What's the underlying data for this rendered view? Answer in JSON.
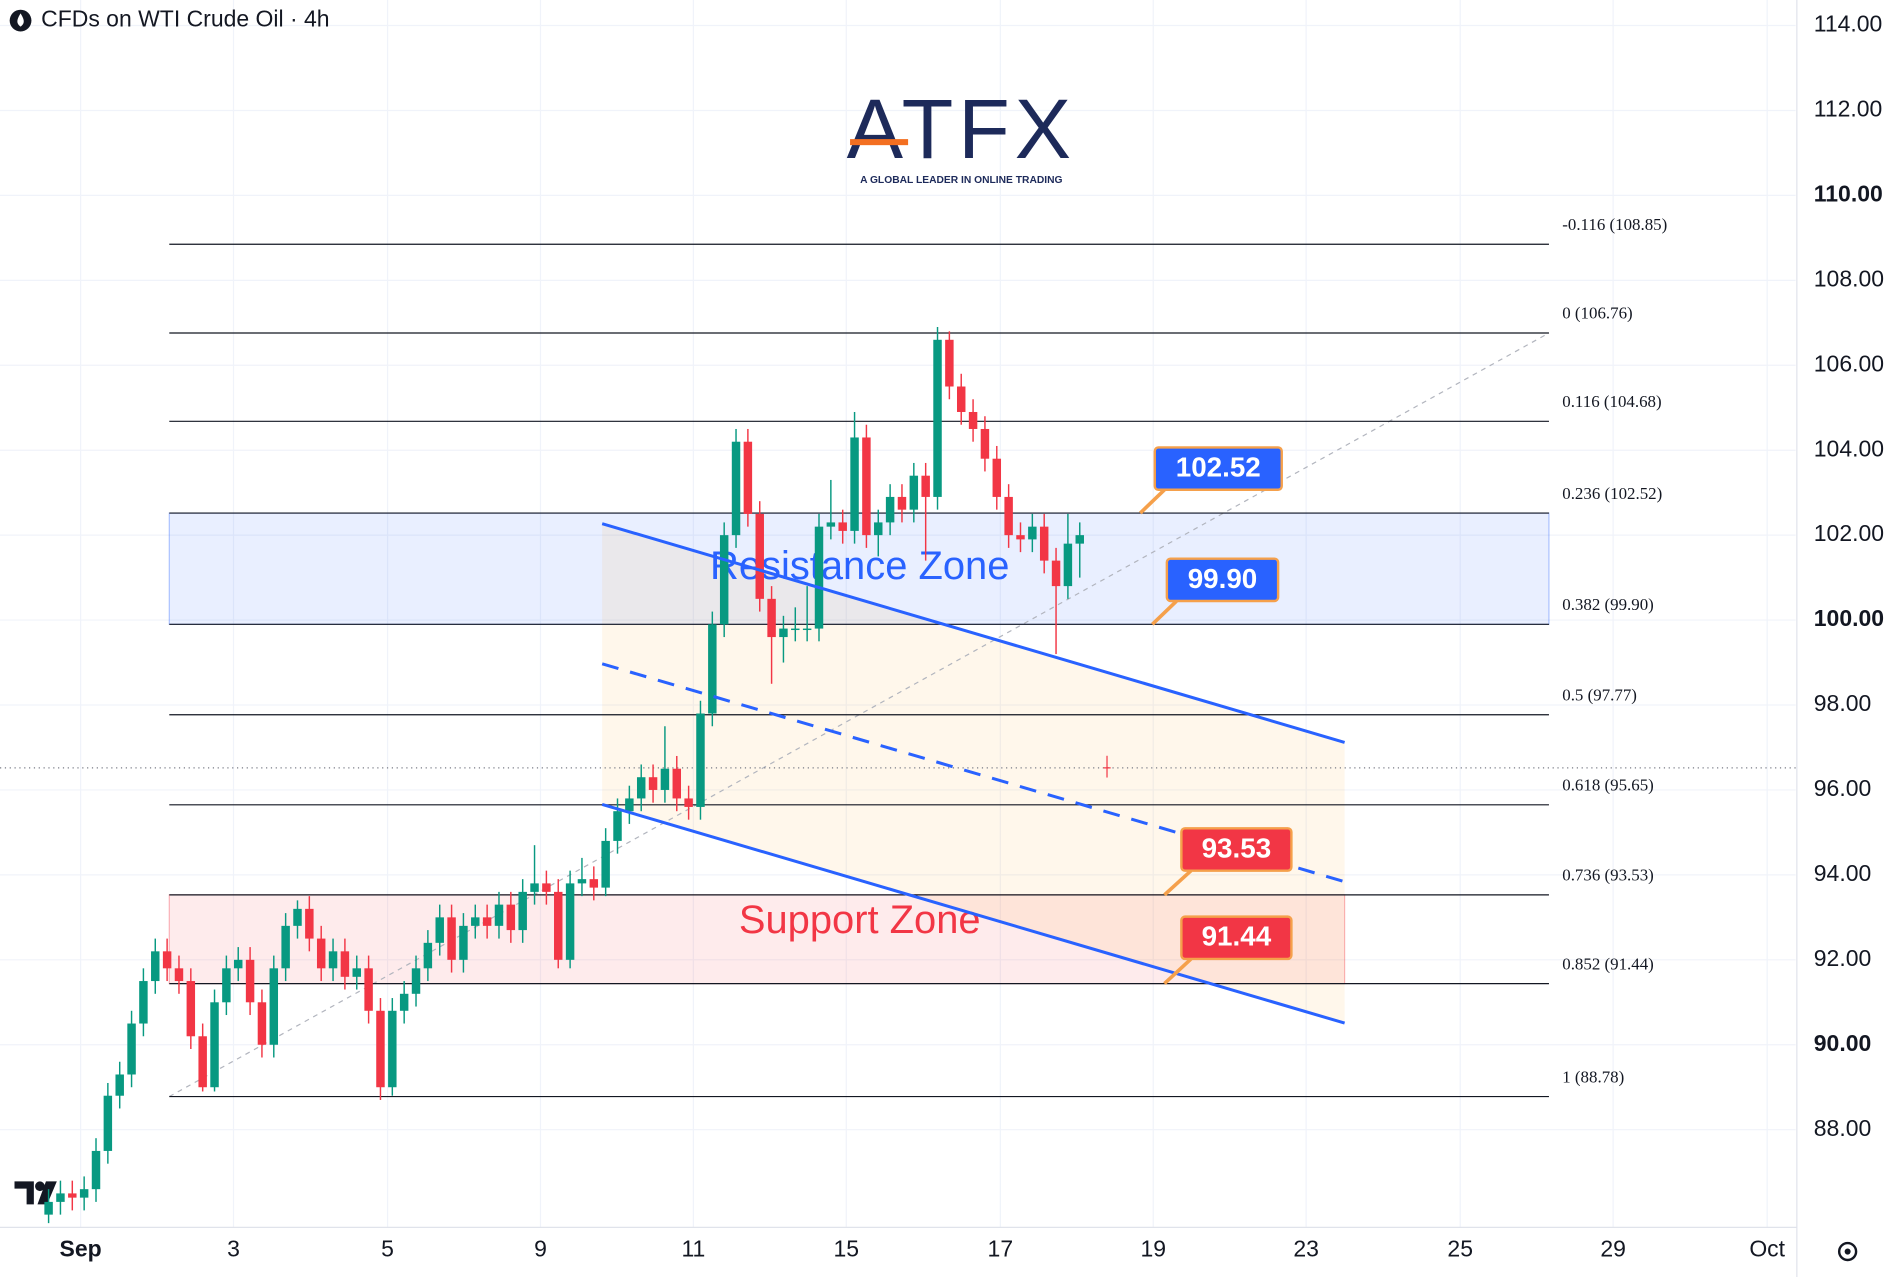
{
  "header": {
    "title": "CFDs on WTI Crude Oil · 4h"
  },
  "logo": {
    "brand": "ATFX",
    "tagline": "A GLOBAL LEADER IN ONLINE TRADING"
  },
  "chart_data": {
    "type": "candlestick",
    "ylim": [
      85.7,
      114.6
    ],
    "yticks": [
      {
        "value": 88,
        "label": "88.00"
      },
      {
        "value": 90,
        "label": "90.00"
      },
      {
        "value": 92,
        "label": "92.00"
      },
      {
        "value": 94,
        "label": "94.00"
      },
      {
        "value": 96,
        "label": "96.00"
      },
      {
        "value": 98,
        "label": "98.00"
      },
      {
        "value": 100,
        "label": "100.00"
      },
      {
        "value": 102,
        "label": "102.00"
      },
      {
        "value": 104,
        "label": "104.00"
      },
      {
        "value": 106,
        "label": "106.00"
      },
      {
        "value": 108,
        "label": "108.00"
      },
      {
        "value": 110,
        "label": "110.00"
      },
      {
        "value": 112,
        "label": "112.00"
      },
      {
        "value": 114,
        "label": "114.00"
      }
    ],
    "xlim": [
      -4.1,
      147.4
    ],
    "xticks": [
      {
        "value": 2.7,
        "label": "Sep"
      },
      {
        "value": 15.6,
        "label": "3"
      },
      {
        "value": 28.6,
        "label": "5"
      },
      {
        "value": 41.5,
        "label": "9"
      },
      {
        "value": 54.4,
        "label": "11"
      },
      {
        "value": 67.3,
        "label": "15"
      },
      {
        "value": 80.3,
        "label": "17"
      },
      {
        "value": 93.2,
        "label": "19"
      },
      {
        "value": 106.1,
        "label": "23"
      },
      {
        "value": 119.1,
        "label": "25"
      },
      {
        "value": 132.0,
        "label": "29"
      },
      {
        "value": 145.0,
        "label": "Oct"
      }
    ],
    "up_color": "#089981",
    "down_color": "#f23645",
    "ohlc": [
      [
        86.0,
        86.6,
        85.8,
        86.3
      ],
      [
        86.3,
        86.8,
        86.0,
        86.5
      ],
      [
        86.5,
        86.8,
        86.1,
        86.4
      ],
      [
        86.4,
        86.9,
        86.1,
        86.6
      ],
      [
        86.6,
        87.8,
        86.3,
        87.5
      ],
      [
        87.5,
        89.1,
        87.2,
        88.8
      ],
      [
        88.8,
        89.6,
        88.5,
        89.3
      ],
      [
        89.3,
        90.8,
        89.0,
        90.5
      ],
      [
        90.5,
        91.8,
        90.2,
        91.5
      ],
      [
        91.5,
        92.5,
        91.2,
        92.2
      ],
      [
        92.2,
        92.5,
        91.5,
        91.8
      ],
      [
        91.8,
        92.1,
        91.2,
        91.5
      ],
      [
        91.5,
        91.8,
        89.9,
        90.2
      ],
      [
        90.2,
        90.5,
        88.9,
        89.0
      ],
      [
        89.0,
        91.3,
        88.9,
        91.0
      ],
      [
        91.0,
        92.1,
        90.7,
        91.8
      ],
      [
        91.8,
        92.3,
        91.5,
        92.0
      ],
      [
        92.0,
        92.3,
        90.7,
        91.0
      ],
      [
        91.0,
        91.3,
        89.7,
        90.0
      ],
      [
        90.0,
        92.1,
        89.7,
        91.8
      ],
      [
        91.8,
        93.1,
        91.5,
        92.8
      ],
      [
        92.8,
        93.4,
        92.5,
        93.2
      ],
      [
        93.2,
        93.5,
        92.2,
        92.5
      ],
      [
        92.5,
        92.8,
        91.5,
        91.8
      ],
      [
        91.8,
        92.5,
        91.5,
        92.2
      ],
      [
        92.2,
        92.5,
        91.3,
        91.6
      ],
      [
        91.6,
        92.1,
        91.3,
        91.8
      ],
      [
        91.8,
        92.1,
        90.5,
        90.8
      ],
      [
        90.8,
        91.1,
        88.7,
        89.0
      ],
      [
        89.0,
        91.1,
        88.8,
        90.8
      ],
      [
        90.8,
        91.5,
        90.5,
        91.2
      ],
      [
        91.2,
        92.1,
        90.9,
        91.8
      ],
      [
        91.8,
        92.7,
        91.5,
        92.4
      ],
      [
        92.4,
        93.3,
        92.1,
        93.0
      ],
      [
        93.0,
        93.3,
        91.7,
        92.0
      ],
      [
        92.0,
        93.1,
        91.7,
        92.8
      ],
      [
        92.8,
        93.3,
        92.5,
        93.0
      ],
      [
        93.0,
        93.3,
        92.5,
        92.8
      ],
      [
        92.8,
        93.6,
        92.5,
        93.3
      ],
      [
        93.3,
        93.6,
        92.4,
        92.7
      ],
      [
        92.7,
        93.9,
        92.4,
        93.6
      ],
      [
        93.6,
        94.7,
        93.3,
        93.8
      ],
      [
        93.8,
        94.1,
        93.3,
        93.6
      ],
      [
        93.6,
        93.9,
        91.8,
        92.0
      ],
      [
        92.0,
        94.1,
        91.8,
        93.8
      ],
      [
        93.8,
        94.4,
        93.5,
        93.9
      ],
      [
        93.9,
        94.2,
        93.4,
        93.7
      ],
      [
        93.7,
        95.1,
        93.5,
        94.8
      ],
      [
        94.8,
        95.8,
        94.5,
        95.5
      ],
      [
        95.5,
        96.1,
        95.2,
        95.8
      ],
      [
        95.8,
        96.6,
        95.5,
        96.3
      ],
      [
        96.3,
        96.6,
        95.7,
        96.0
      ],
      [
        96.0,
        97.5,
        95.7,
        96.5
      ],
      [
        96.5,
        96.8,
        95.5,
        95.8
      ],
      [
        95.8,
        96.1,
        95.3,
        95.6
      ],
      [
        95.6,
        98.1,
        95.3,
        97.8
      ],
      [
        97.8,
        100.2,
        97.5,
        99.9
      ],
      [
        99.9,
        102.3,
        99.6,
        102.0
      ],
      [
        102.0,
        104.5,
        101.7,
        104.2
      ],
      [
        104.2,
        104.5,
        102.2,
        102.5
      ],
      [
        102.5,
        102.8,
        100.2,
        100.5
      ],
      [
        100.5,
        100.8,
        98.5,
        99.6
      ],
      [
        99.6,
        100.1,
        99.0,
        99.8
      ],
      [
        99.8,
        100.3,
        99.5,
        99.8
      ],
      [
        99.8,
        100.8,
        99.5,
        99.8
      ],
      [
        99.8,
        102.5,
        99.5,
        102.2
      ],
      [
        102.2,
        103.3,
        101.9,
        102.3
      ],
      [
        102.3,
        102.6,
        101.8,
        102.1
      ],
      [
        102.1,
        104.9,
        101.8,
        104.3
      ],
      [
        104.3,
        104.6,
        101.7,
        102.0
      ],
      [
        102.0,
        102.6,
        101.5,
        102.3
      ],
      [
        102.3,
        103.2,
        102.0,
        102.9
      ],
      [
        102.9,
        103.2,
        102.3,
        102.6
      ],
      [
        102.6,
        103.7,
        102.3,
        103.4
      ],
      [
        103.4,
        103.7,
        101.4,
        102.9
      ],
      [
        102.9,
        106.9,
        102.6,
        106.6
      ],
      [
        106.6,
        106.8,
        105.2,
        105.5
      ],
      [
        105.5,
        105.8,
        104.6,
        104.9
      ],
      [
        104.9,
        105.2,
        104.2,
        104.5
      ],
      [
        104.5,
        104.8,
        103.5,
        103.8
      ],
      [
        103.8,
        104.1,
        102.6,
        102.9
      ],
      [
        102.9,
        103.2,
        101.7,
        102.0
      ],
      [
        102.0,
        102.3,
        101.6,
        101.9
      ],
      [
        101.9,
        102.5,
        101.6,
        102.2
      ],
      [
        102.2,
        102.5,
        101.1,
        101.4
      ],
      [
        101.4,
        101.7,
        99.2,
        100.8
      ],
      [
        100.8,
        102.5,
        100.5,
        101.8
      ],
      [
        101.8,
        102.3,
        101.0,
        102.0
      ]
    ],
    "last_price": 96.52,
    "fib_levels": [
      {
        "label": "-0.116 (108.85)",
        "value": 108.85
      },
      {
        "label": "0 (106.76)",
        "value": 106.76
      },
      {
        "label": "0.116 (104.68)",
        "value": 104.68
      },
      {
        "label": "0.236 (102.52)",
        "value": 102.52
      },
      {
        "label": "0.382 (99.90)",
        "value": 99.9
      },
      {
        "label": "0.5 (97.77)",
        "value": 97.77
      },
      {
        "label": "0.618 (95.65)",
        "value": 95.65
      },
      {
        "label": "0.736 (93.53)",
        "value": 93.53
      },
      {
        "label": "0.852 (91.44)",
        "value": 91.44
      },
      {
        "label": "1 (88.78)",
        "value": 88.78
      }
    ],
    "zones": [
      {
        "label": "Resistance Zone",
        "low": 99.9,
        "high": 102.52,
        "color": "#2962ff"
      },
      {
        "label": "Support Zone",
        "low": 91.44,
        "high": 93.53,
        "color": "#f23645"
      }
    ],
    "channel": {
      "upper": [
        102.27,
        97.12
      ],
      "middle": [
        98.97,
        93.84
      ],
      "lower": [
        95.66,
        90.51
      ],
      "color": "#2962ff"
    },
    "price_labels": [
      {
        "value": 102.52,
        "label": "102.52",
        "color": "#2962ff"
      },
      {
        "value": 99.9,
        "label": "99.90",
        "color": "#2962ff"
      },
      {
        "value": 93.53,
        "label": "93.53",
        "color": "#f23645"
      },
      {
        "value": 91.44,
        "label": "91.44",
        "color": "#f23645"
      }
    ]
  }
}
